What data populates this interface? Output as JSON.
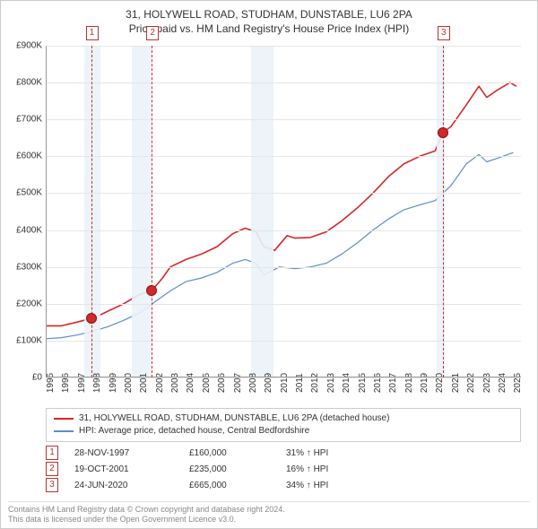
{
  "title_line1": "31, HOLYWELL ROAD, STUDHAM, DUNSTABLE, LU6 2PA",
  "title_line2": "Price paid vs. HM Land Registry's House Price Index (HPI)",
  "chart": {
    "type": "line",
    "background_color": "#ffffff",
    "grid_color": "#e6e6e6",
    "axis_color": "#999999",
    "shade_color": "#eaf2f8",
    "x_years": [
      1995,
      1996,
      1997,
      1998,
      1999,
      2000,
      2001,
      2002,
      2003,
      2004,
      2005,
      2006,
      2007,
      2008,
      2009,
      2010,
      2011,
      2012,
      2013,
      2014,
      2015,
      2016,
      2017,
      2018,
      2019,
      2020,
      2021,
      2022,
      2023,
      2024,
      2025
    ],
    "x_min": 1995,
    "x_max": 2025.5,
    "y_ticks": [
      0,
      100,
      200,
      300,
      400,
      500,
      600,
      700,
      800,
      900
    ],
    "y_tick_labels": [
      "£0",
      "£100K",
      "£200K",
      "£300K",
      "£400K",
      "£500K",
      "£600K",
      "£700K",
      "£800K",
      "£900K"
    ],
    "y_min": 0,
    "y_max": 900,
    "y_unit": "K",
    "tick_fontsize": 10,
    "title_fontsize": 12,
    "line_width_red": 1.6,
    "line_width_blue": 1.2,
    "color_red": "#d62728",
    "color_blue": "#5b8fc7",
    "marker_border": "#7a1818",
    "event_line_color": "#c13030",
    "shaded_recessions": [
      {
        "start": 1997.5,
        "end": 1998.5
      },
      {
        "start": 2000.5,
        "end": 2001.8
      },
      {
        "start": 2008.2,
        "end": 2009.6
      },
      {
        "start": 2020.1,
        "end": 2020.6
      }
    ],
    "series_red": [
      {
        "x": 1995.0,
        "y": 140
      },
      {
        "x": 1996.0,
        "y": 140
      },
      {
        "x": 1997.0,
        "y": 150
      },
      {
        "x": 1997.9,
        "y": 160
      },
      {
        "x": 1998.5,
        "y": 170
      },
      {
        "x": 1999.0,
        "y": 180
      },
      {
        "x": 2000.0,
        "y": 200
      },
      {
        "x": 2001.0,
        "y": 225
      },
      {
        "x": 2001.8,
        "y": 235
      },
      {
        "x": 2002.5,
        "y": 270
      },
      {
        "x": 2003.0,
        "y": 300
      },
      {
        "x": 2004.0,
        "y": 320
      },
      {
        "x": 2005.0,
        "y": 335
      },
      {
        "x": 2006.0,
        "y": 355
      },
      {
        "x": 2007.0,
        "y": 390
      },
      {
        "x": 2007.8,
        "y": 405
      },
      {
        "x": 2008.5,
        "y": 395
      },
      {
        "x": 2009.0,
        "y": 355
      },
      {
        "x": 2009.7,
        "y": 345
      },
      {
        "x": 2010.5,
        "y": 385
      },
      {
        "x": 2011.0,
        "y": 378
      },
      {
        "x": 2012.0,
        "y": 380
      },
      {
        "x": 2013.0,
        "y": 395
      },
      {
        "x": 2014.0,
        "y": 425
      },
      {
        "x": 2015.0,
        "y": 460
      },
      {
        "x": 2016.0,
        "y": 500
      },
      {
        "x": 2017.0,
        "y": 545
      },
      {
        "x": 2018.0,
        "y": 580
      },
      {
        "x": 2019.0,
        "y": 600
      },
      {
        "x": 2020.0,
        "y": 615
      },
      {
        "x": 2020.48,
        "y": 665
      },
      {
        "x": 2021.0,
        "y": 680
      },
      {
        "x": 2022.0,
        "y": 740
      },
      {
        "x": 2022.8,
        "y": 790
      },
      {
        "x": 2023.3,
        "y": 760
      },
      {
        "x": 2024.0,
        "y": 780
      },
      {
        "x": 2024.8,
        "y": 800
      },
      {
        "x": 2025.2,
        "y": 790
      }
    ],
    "series_blue": [
      {
        "x": 1995.0,
        "y": 105
      },
      {
        "x": 1996.0,
        "y": 108
      },
      {
        "x": 1997.0,
        "y": 115
      },
      {
        "x": 1998.0,
        "y": 125
      },
      {
        "x": 1999.0,
        "y": 138
      },
      {
        "x": 2000.0,
        "y": 155
      },
      {
        "x": 2001.0,
        "y": 175
      },
      {
        "x": 2002.0,
        "y": 205
      },
      {
        "x": 2003.0,
        "y": 235
      },
      {
        "x": 2004.0,
        "y": 260
      },
      {
        "x": 2005.0,
        "y": 270
      },
      {
        "x": 2006.0,
        "y": 285
      },
      {
        "x": 2007.0,
        "y": 310
      },
      {
        "x": 2007.8,
        "y": 320
      },
      {
        "x": 2008.5,
        "y": 310
      },
      {
        "x": 2009.0,
        "y": 278
      },
      {
        "x": 2010.0,
        "y": 300
      },
      {
        "x": 2011.0,
        "y": 295
      },
      {
        "x": 2012.0,
        "y": 300
      },
      {
        "x": 2013.0,
        "y": 310
      },
      {
        "x": 2014.0,
        "y": 335
      },
      {
        "x": 2015.0,
        "y": 365
      },
      {
        "x": 2016.0,
        "y": 400
      },
      {
        "x": 2017.0,
        "y": 430
      },
      {
        "x": 2018.0,
        "y": 455
      },
      {
        "x": 2019.0,
        "y": 468
      },
      {
        "x": 2020.0,
        "y": 480
      },
      {
        "x": 2021.0,
        "y": 520
      },
      {
        "x": 2022.0,
        "y": 580
      },
      {
        "x": 2022.8,
        "y": 605
      },
      {
        "x": 2023.3,
        "y": 585
      },
      {
        "x": 2024.0,
        "y": 595
      },
      {
        "x": 2025.0,
        "y": 610
      }
    ],
    "events": [
      {
        "n": "1",
        "x": 1997.91,
        "note": "28-NOV-1997",
        "price": "£160,000",
        "pct": "31% ↑ HPI",
        "marker_y": 160
      },
      {
        "n": "2",
        "x": 2001.8,
        "note": "19-OCT-2001",
        "price": "£235,000",
        "pct": "16% ↑ HPI",
        "marker_y": 235
      },
      {
        "n": "3",
        "x": 2020.48,
        "note": "24-JUN-2020",
        "price": "£665,000",
        "pct": "34% ↑ HPI",
        "marker_y": 665
      }
    ]
  },
  "legend": {
    "red_label": "31, HOLYWELL ROAD, STUDHAM, DUNSTABLE, LU6 2PA (detached house)",
    "blue_label": "HPI: Average price, detached house, Central Bedfordshire"
  },
  "footer_line1": "Contains HM Land Registry data © Crown copyright and database right 2024.",
  "footer_line2": "This data is licensed under the Open Government Licence v3.0."
}
